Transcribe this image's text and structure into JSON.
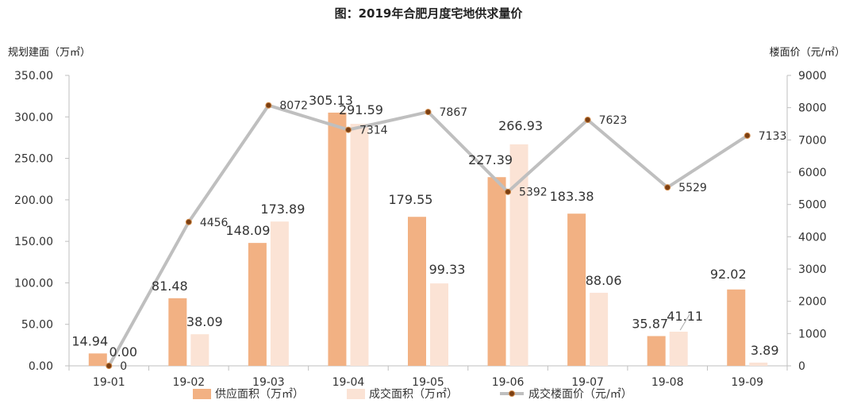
{
  "chart_data": {
    "type": "bar+line",
    "title": "图：2019年合肥月度宅地供求量价",
    "y_left_label": "规划建面（万㎡）",
    "y_right_label": "楼面价（元/㎡）",
    "categories": [
      "19-01",
      "19-02",
      "19-03",
      "19-04",
      "19-05",
      "19-06",
      "19-07",
      "19-08",
      "19-09"
    ],
    "ylim_left": [
      0,
      350
    ],
    "ylim_right": [
      0,
      9000
    ],
    "y_left_ticks": [
      "0.00",
      "50.00",
      "100.00",
      "150.00",
      "200.00",
      "250.00",
      "300.00",
      "350.00"
    ],
    "y_right_ticks": [
      "0",
      "1000",
      "2000",
      "3000",
      "4000",
      "5000",
      "6000",
      "7000",
      "8000",
      "9000"
    ],
    "series": [
      {
        "name": "供应面积（万㎡）",
        "type": "bar",
        "axis": "left",
        "color": "#f2b183",
        "values": [
          14.94,
          81.48,
          148.09,
          305.13,
          179.55,
          227.39,
          183.38,
          35.87,
          92.02
        ],
        "labels": [
          "14.94",
          "81.48",
          "148.09",
          "305.13",
          "179.55",
          "227.39",
          "183.38",
          "35.87",
          "92.02"
        ]
      },
      {
        "name": "成交面积（万㎡）",
        "type": "bar",
        "axis": "left",
        "color": "#fbe3d5",
        "values": [
          0.0,
          38.09,
          173.89,
          291.59,
          99.33,
          266.93,
          88.06,
          41.11,
          3.89
        ],
        "labels": [
          "0.00",
          "38.09",
          "173.89",
          "291.59",
          "99.33",
          "266.93",
          "88.06",
          "41.11",
          "3.89"
        ]
      },
      {
        "name": "成交楼面价（元/㎡）",
        "type": "line",
        "axis": "right",
        "color": "#bfbfbf",
        "marker_color": "#7b3f12",
        "values": [
          0,
          4456,
          8072,
          7314,
          7867,
          5392,
          7623,
          5529,
          7133
        ],
        "labels": [
          "0",
          "4456",
          "8072",
          "7314",
          "7867",
          "5392",
          "7623",
          "5529",
          "7133"
        ]
      }
    ],
    "grid": false,
    "legend_position": "bottom"
  }
}
